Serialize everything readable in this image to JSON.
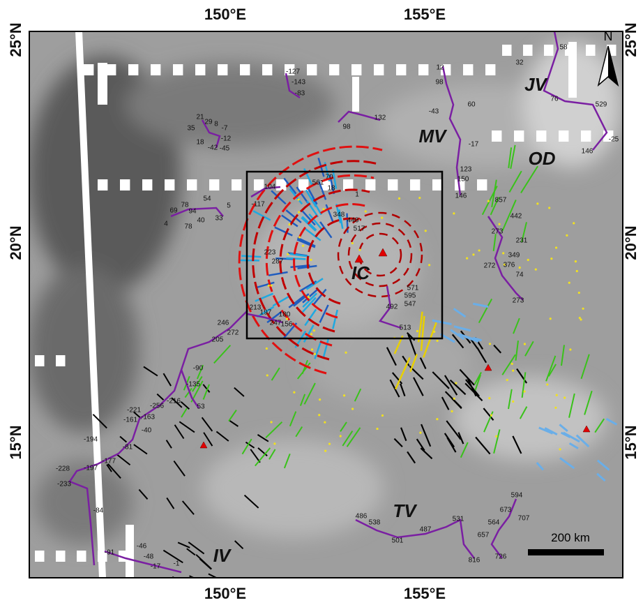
{
  "axes": {
    "top": [
      "150°E",
      "155°E"
    ],
    "bottom": [
      "150°E",
      "155°E"
    ],
    "left": [
      "25°N",
      "20°N",
      "15°N"
    ],
    "right": [
      "25°N",
      "20°N",
      "15°N"
    ]
  },
  "regions": [
    "JV",
    "MV",
    "OD",
    "IC",
    "TV",
    "IV"
  ],
  "scale_bar": "200 km",
  "north": "N",
  "profile_labels": [
    "-127",
    "-143",
    "-83",
    "21",
    "29",
    "8",
    "35",
    "-7",
    "-12",
    "18",
    "-42",
    "-45",
    "98",
    "132",
    "12",
    "98",
    "60",
    "-43",
    "-17",
    "123",
    "150",
    "146",
    "58",
    "32",
    "76",
    "529",
    "-25",
    "146",
    "104",
    "-117",
    "69",
    "78",
    "54",
    "94",
    "5",
    "4",
    "40",
    "33",
    "78",
    "561",
    "70",
    "18",
    "1",
    "348",
    "446",
    "517",
    "223",
    "287",
    "571",
    "595",
    "547",
    "492",
    "513",
    "213",
    "197",
    "180",
    "247",
    "156",
    "246",
    "272",
    "205",
    "857",
    "442",
    "273",
    "231",
    "349",
    "376",
    "74",
    "272",
    "273",
    "-90",
    "-135",
    "-216",
    "53",
    "-256",
    "-221",
    "-163",
    "-161",
    "-40",
    "-194",
    "-81",
    "-177",
    "-197",
    "-228",
    "-233",
    "-84",
    "486",
    "538",
    "501",
    "487",
    "531",
    "816",
    "594",
    "673",
    "707",
    "564",
    "657",
    "726",
    "-46",
    "-91",
    "-48",
    "-17",
    "-1"
  ]
}
